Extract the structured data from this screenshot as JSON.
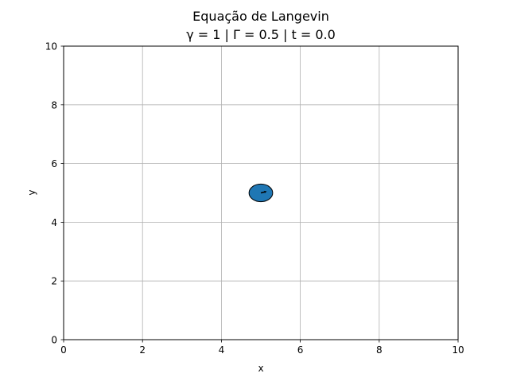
{
  "chart_data": {
    "type": "scatter",
    "title": "Equação de Langevin",
    "subtitle": "γ = 1 | Γ = 0.5 | t = 0.0",
    "xlabel": "x",
    "ylabel": "y",
    "xlim": [
      0,
      10
    ],
    "ylim": [
      0,
      10
    ],
    "xticks": [
      "0",
      "2",
      "4",
      "6",
      "8",
      "10"
    ],
    "yticks": [
      "0",
      "2",
      "4",
      "6",
      "8",
      "10"
    ],
    "grid": true,
    "particle": {
      "x": 5.0,
      "y": 5.0,
      "radius": 0.3,
      "velocity": [
        0.15,
        0.05
      ],
      "fill_color": "#1f77b4",
      "edge_color": "#000000"
    }
  }
}
